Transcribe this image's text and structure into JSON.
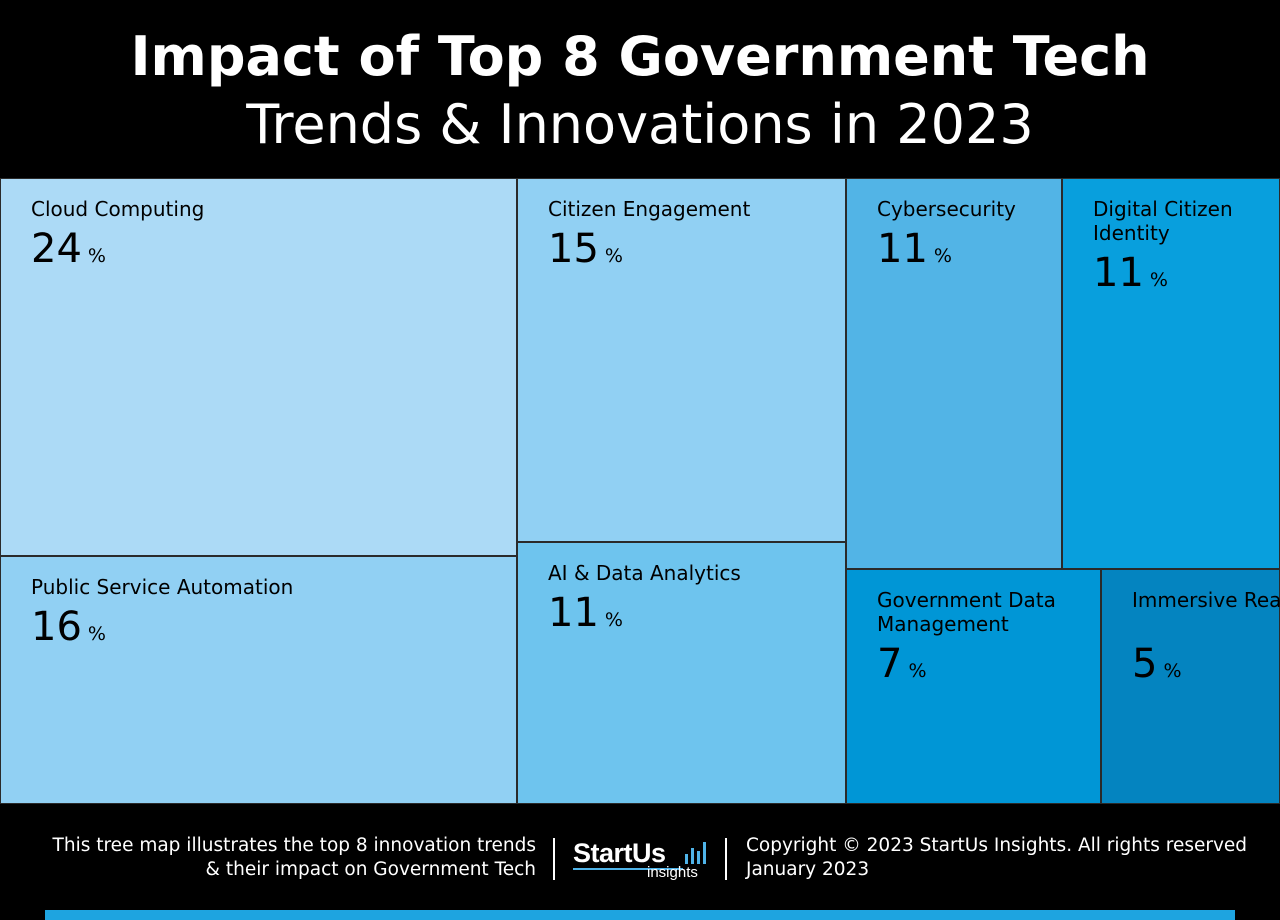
{
  "header": {
    "title_line1": "Impact of Top 8 Government Tech",
    "title_line2": "Trends & Innovations in 2023"
  },
  "chart_data": {
    "type": "treemap",
    "title": "Impact of Top 8 Government Tech Trends & Innovations in 2023",
    "unit": "%",
    "categories": [
      "Cloud Computing",
      "Public Service Automation",
      "Citizen Engagement",
      "AI & Data Analytics",
      "Cybersecurity",
      "Digital Citizen Identity",
      "Government Data Management",
      "Immersive Reality"
    ],
    "values": [
      24,
      16,
      15,
      11,
      11,
      11,
      7,
      5
    ],
    "items": [
      {
        "label": "Cloud Computing",
        "value": 24,
        "color": "#acdaf6"
      },
      {
        "label": "Public Service Automation",
        "value": 16,
        "color": "#91d0f3"
      },
      {
        "label": "Citizen Engagement",
        "value": 15,
        "color": "#91d0f3"
      },
      {
        "label": "AI & Data Analytics",
        "value": 11,
        "color": "#6ec4ee"
      },
      {
        "label": "Cybersecurity",
        "value": 11,
        "color": "#52b4e6"
      },
      {
        "label": "Digital Citizen Identity",
        "value": 11,
        "color": "#089fdd"
      },
      {
        "label": "Government Data Management",
        "value": 7,
        "color": "#0096d6"
      },
      {
        "label": "Immersive Reality",
        "value": 5,
        "color": "#0484c0"
      }
    ]
  },
  "footer": {
    "description_line1": "This tree map illustrates the top 8 innovation trends",
    "description_line2": "& their impact on Government Tech",
    "logo_brand": "StartUs",
    "logo_sub": "insights",
    "copyright": "Copyright © 2023 StartUs Insights. All rights reserved",
    "date": "January 2023"
  }
}
